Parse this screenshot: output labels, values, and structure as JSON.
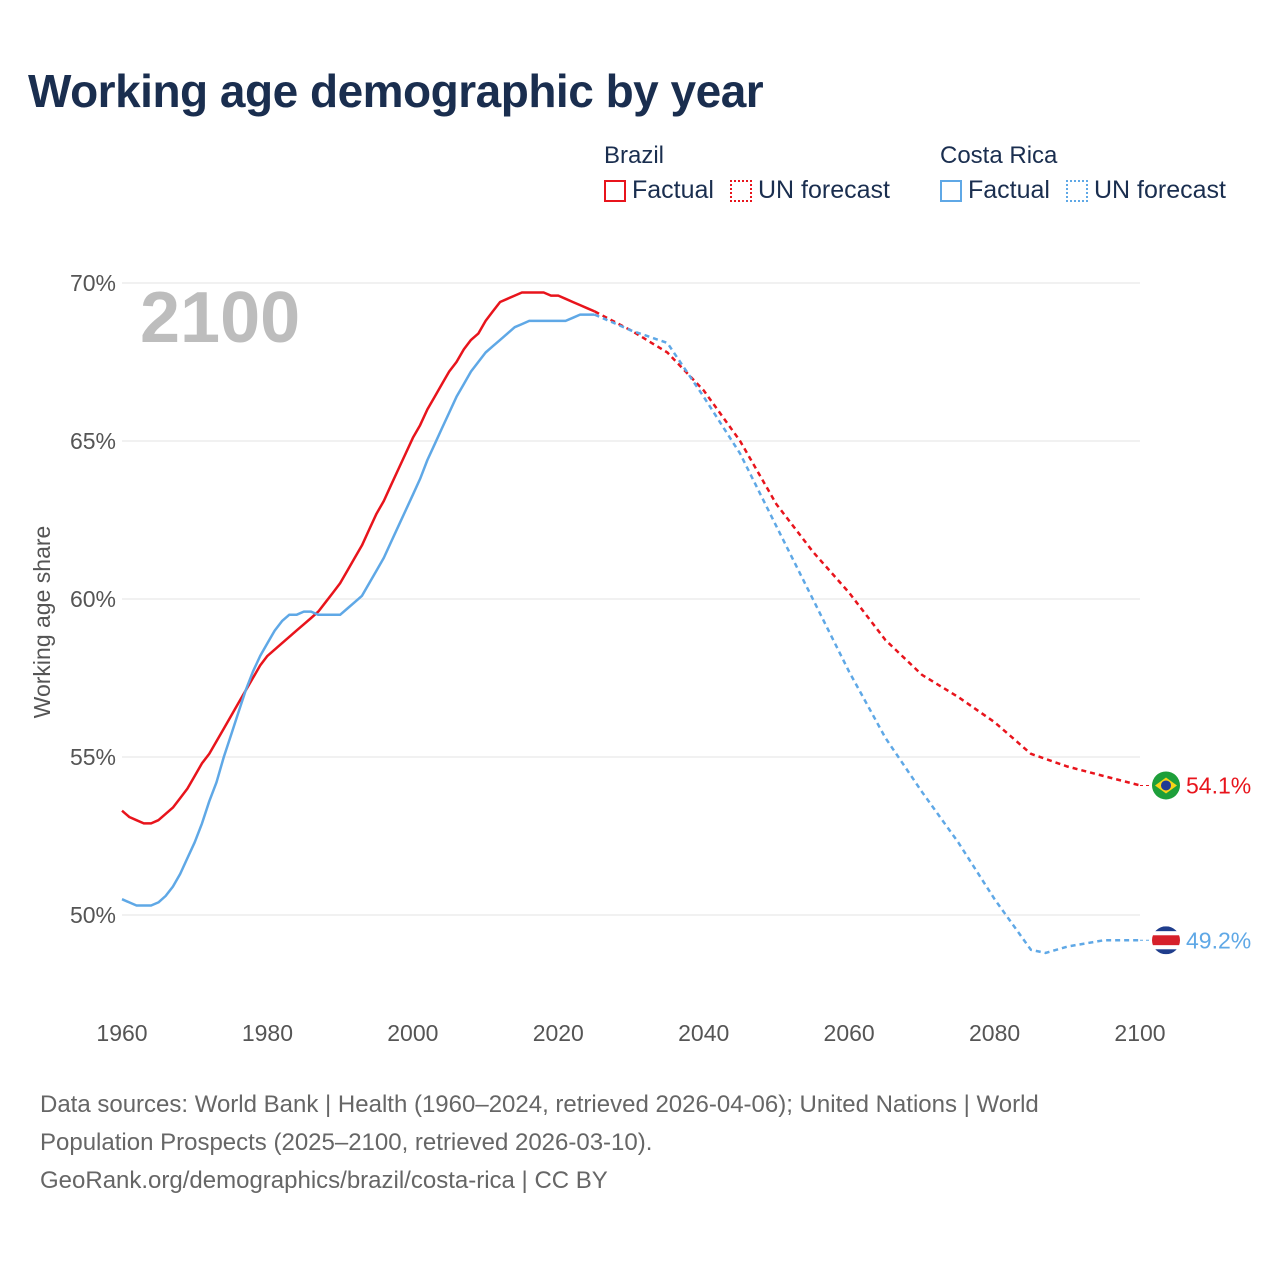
{
  "title": "Working age demographic by year",
  "legend": {
    "groups": [
      {
        "name": "Brazil",
        "factual_label": "Factual",
        "forecast_label": "UN forecast",
        "color": "#e8141c"
      },
      {
        "name": "Costa Rica",
        "factual_label": "Factual",
        "forecast_label": "UN forecast",
        "color": "#5fa8e6"
      }
    ]
  },
  "footer": {
    "line1": "Data sources: World Bank | Health (1960–2024, retrieved 2026-04-06); United Nations | World",
    "line2": "Population Prospects (2025–2100, retrieved 2026-03-10).",
    "line3": "GeoRank.org/demographics/brazil/costa-rica | CC BY"
  },
  "chart_data": {
    "type": "line",
    "title": "Working age demographic by year",
    "ylabel": "Working age share",
    "xlabel": "",
    "current_year": "2100",
    "xlim": [
      1960,
      2100
    ],
    "ylim": [
      47,
      70.5
    ],
    "x_ticks": [
      1960,
      1980,
      2000,
      2020,
      2040,
      2060,
      2080,
      2100
    ],
    "y_ticks": [
      50,
      55,
      60,
      65,
      70
    ],
    "y_tick_labels": [
      "50%",
      "55%",
      "60%",
      "65%",
      "70%"
    ],
    "forecast_start": 2025,
    "grid": true,
    "series": [
      {
        "name": "Brazil",
        "color": "#e8141c",
        "end_label": "54.1%",
        "flag": "brazil-flag",
        "points": [
          [
            1960,
            53.3
          ],
          [
            1961,
            53.1
          ],
          [
            1962,
            53.0
          ],
          [
            1963,
            52.9
          ],
          [
            1964,
            52.9
          ],
          [
            1965,
            53.0
          ],
          [
            1966,
            53.2
          ],
          [
            1967,
            53.4
          ],
          [
            1968,
            53.7
          ],
          [
            1969,
            54.0
          ],
          [
            1970,
            54.4
          ],
          [
            1971,
            54.8
          ],
          [
            1972,
            55.1
          ],
          [
            1973,
            55.5
          ],
          [
            1974,
            55.9
          ],
          [
            1975,
            56.3
          ],
          [
            1976,
            56.7
          ],
          [
            1977,
            57.1
          ],
          [
            1978,
            57.5
          ],
          [
            1979,
            57.9
          ],
          [
            1980,
            58.2
          ],
          [
            1981,
            58.4
          ],
          [
            1982,
            58.6
          ],
          [
            1983,
            58.8
          ],
          [
            1984,
            59.0
          ],
          [
            1985,
            59.2
          ],
          [
            1986,
            59.4
          ],
          [
            1987,
            59.6
          ],
          [
            1988,
            59.9
          ],
          [
            1989,
            60.2
          ],
          [
            1990,
            60.5
          ],
          [
            1991,
            60.9
          ],
          [
            1992,
            61.3
          ],
          [
            1993,
            61.7
          ],
          [
            1994,
            62.2
          ],
          [
            1995,
            62.7
          ],
          [
            1996,
            63.1
          ],
          [
            1997,
            63.6
          ],
          [
            1998,
            64.1
          ],
          [
            1999,
            64.6
          ],
          [
            2000,
            65.1
          ],
          [
            2001,
            65.5
          ],
          [
            2002,
            66.0
          ],
          [
            2003,
            66.4
          ],
          [
            2004,
            66.8
          ],
          [
            2005,
            67.2
          ],
          [
            2006,
            67.5
          ],
          [
            2007,
            67.9
          ],
          [
            2008,
            68.2
          ],
          [
            2009,
            68.4
          ],
          [
            2010,
            68.8
          ],
          [
            2011,
            69.1
          ],
          [
            2012,
            69.4
          ],
          [
            2013,
            69.5
          ],
          [
            2014,
            69.6
          ],
          [
            2015,
            69.7
          ],
          [
            2016,
            69.7
          ],
          [
            2017,
            69.7
          ],
          [
            2018,
            69.7
          ],
          [
            2019,
            69.6
          ],
          [
            2020,
            69.6
          ],
          [
            2021,
            69.5
          ],
          [
            2022,
            69.4
          ],
          [
            2023,
            69.3
          ],
          [
            2024,
            69.2
          ],
          [
            2025,
            69.1
          ],
          [
            2030,
            68.5
          ],
          [
            2035,
            67.8
          ],
          [
            2040,
            66.6
          ],
          [
            2045,
            65.0
          ],
          [
            2050,
            63.0
          ],
          [
            2055,
            61.5
          ],
          [
            2060,
            60.2
          ],
          [
            2065,
            58.7
          ],
          [
            2070,
            57.6
          ],
          [
            2075,
            56.9
          ],
          [
            2080,
            56.1
          ],
          [
            2085,
            55.1
          ],
          [
            2090,
            54.7
          ],
          [
            2095,
            54.4
          ],
          [
            2100,
            54.1
          ]
        ]
      },
      {
        "name": "Costa Rica",
        "color": "#5fa8e6",
        "end_label": "49.2%",
        "flag": "costa-rica-flag",
        "points": [
          [
            1960,
            50.5
          ],
          [
            1961,
            50.4
          ],
          [
            1962,
            50.3
          ],
          [
            1963,
            50.3
          ],
          [
            1964,
            50.3
          ],
          [
            1965,
            50.4
          ],
          [
            1966,
            50.6
          ],
          [
            1967,
            50.9
          ],
          [
            1968,
            51.3
          ],
          [
            1969,
            51.8
          ],
          [
            1970,
            52.3
          ],
          [
            1971,
            52.9
          ],
          [
            1972,
            53.6
          ],
          [
            1973,
            54.2
          ],
          [
            1974,
            55.0
          ],
          [
            1975,
            55.7
          ],
          [
            1976,
            56.4
          ],
          [
            1977,
            57.1
          ],
          [
            1978,
            57.7
          ],
          [
            1979,
            58.2
          ],
          [
            1980,
            58.6
          ],
          [
            1981,
            59.0
          ],
          [
            1982,
            59.3
          ],
          [
            1983,
            59.5
          ],
          [
            1984,
            59.5
          ],
          [
            1985,
            59.6
          ],
          [
            1986,
            59.6
          ],
          [
            1987,
            59.5
          ],
          [
            1988,
            59.5
          ],
          [
            1989,
            59.5
          ],
          [
            1990,
            59.5
          ],
          [
            1991,
            59.7
          ],
          [
            1992,
            59.9
          ],
          [
            1993,
            60.1
          ],
          [
            1994,
            60.5
          ],
          [
            1995,
            60.9
          ],
          [
            1996,
            61.3
          ],
          [
            1997,
            61.8
          ],
          [
            1998,
            62.3
          ],
          [
            1999,
            62.8
          ],
          [
            2000,
            63.3
          ],
          [
            2001,
            63.8
          ],
          [
            2002,
            64.4
          ],
          [
            2003,
            64.9
          ],
          [
            2004,
            65.4
          ],
          [
            2005,
            65.9
          ],
          [
            2006,
            66.4
          ],
          [
            2007,
            66.8
          ],
          [
            2008,
            67.2
          ],
          [
            2009,
            67.5
          ],
          [
            2010,
            67.8
          ],
          [
            2011,
            68.0
          ],
          [
            2012,
            68.2
          ],
          [
            2013,
            68.4
          ],
          [
            2014,
            68.6
          ],
          [
            2015,
            68.7
          ],
          [
            2016,
            68.8
          ],
          [
            2017,
            68.8
          ],
          [
            2018,
            68.8
          ],
          [
            2019,
            68.8
          ],
          [
            2020,
            68.8
          ],
          [
            2021,
            68.8
          ],
          [
            2022,
            68.9
          ],
          [
            2023,
            69.0
          ],
          [
            2024,
            69.0
          ],
          [
            2025,
            69.0
          ],
          [
            2030,
            68.5
          ],
          [
            2035,
            68.1
          ],
          [
            2040,
            66.4
          ],
          [
            2045,
            64.6
          ],
          [
            2050,
            62.3
          ],
          [
            2055,
            60.0
          ],
          [
            2060,
            57.7
          ],
          [
            2065,
            55.6
          ],
          [
            2070,
            53.9
          ],
          [
            2075,
            52.3
          ],
          [
            2080,
            50.5
          ],
          [
            2085,
            48.9
          ],
          [
            2087,
            48.8
          ],
          [
            2090,
            49.0
          ],
          [
            2095,
            49.2
          ],
          [
            2100,
            49.2
          ]
        ]
      }
    ]
  }
}
